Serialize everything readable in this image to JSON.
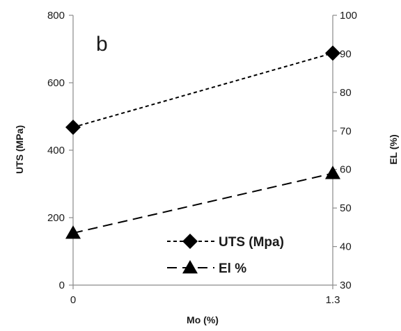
{
  "chart_data": {
    "type": "line",
    "panel_label": "b",
    "xlabel": "Mo (%)",
    "x_ticks": [
      "0",
      "1.3"
    ],
    "x": [
      0,
      1.3
    ],
    "y_left": {
      "label": "UTS (MPa)",
      "lim": [
        0,
        800
      ],
      "ticks": [
        "0",
        "200",
        "400",
        "600",
        "800"
      ]
    },
    "y_right": {
      "label": "EL (%)",
      "lim": [
        30,
        100
      ],
      "ticks": [
        "30",
        "40",
        "50",
        "60",
        "70",
        "80",
        "90",
        "100"
      ]
    },
    "series": [
      {
        "name": "UTS (Mpa)",
        "axis": "left",
        "marker": "diamond",
        "dash": "short",
        "values": [
          468,
          688
        ]
      },
      {
        "name": "El %",
        "axis": "right",
        "marker": "triangle",
        "dash": "long",
        "values": [
          43.5,
          59
        ]
      }
    ],
    "legend_position": "bottom-right",
    "grid": false
  }
}
